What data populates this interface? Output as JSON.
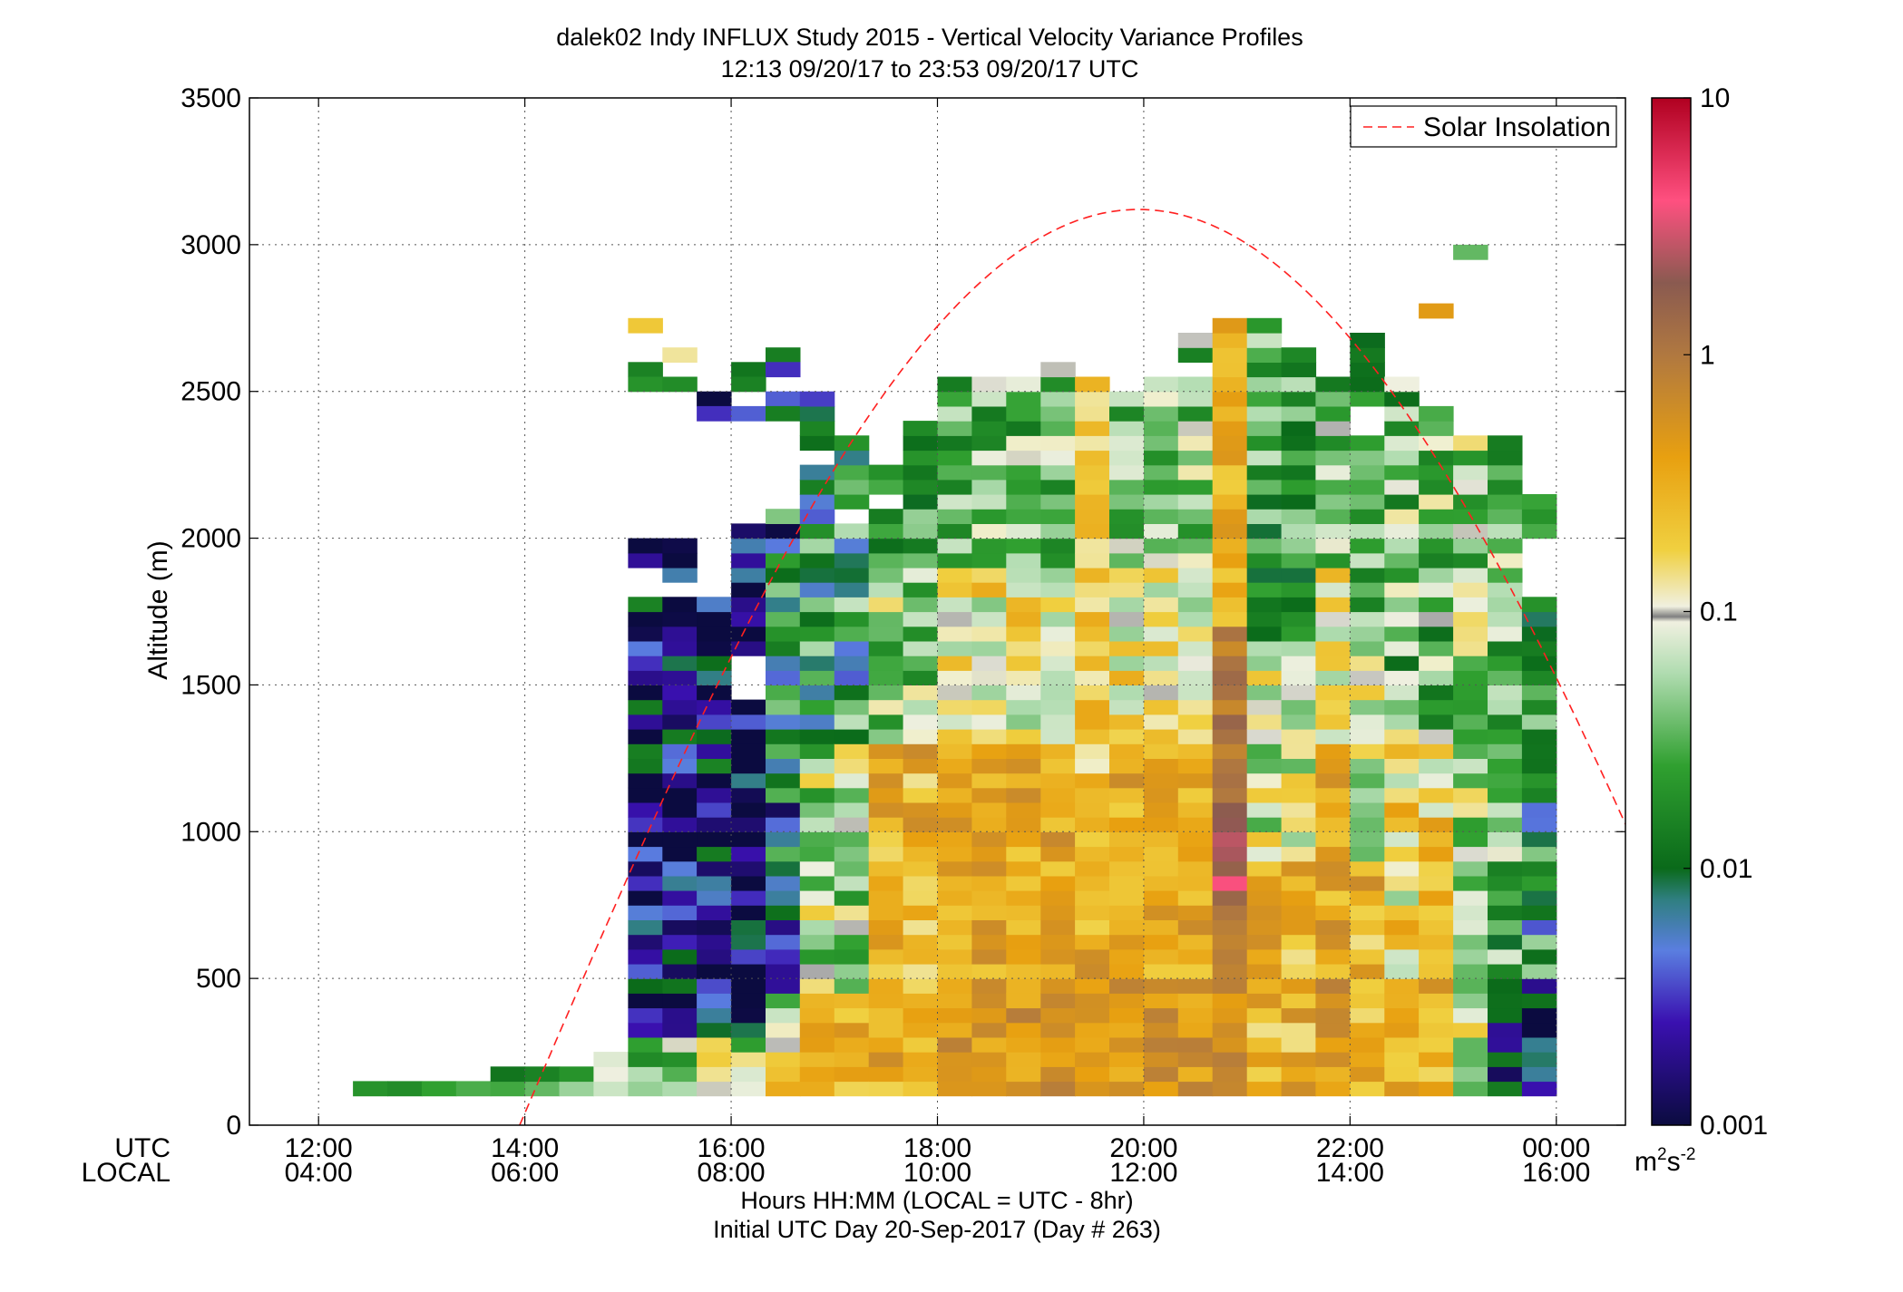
{
  "chart_data": {
    "type": "heatmap",
    "title_line1": "dalek02 Indy INFLUX Study 2015 - Vertical Velocity Variance Profiles",
    "title_line2": "12:13 09/20/17 to 23:53 09/20/17  UTC",
    "xlabel_line1": "Hours HH:MM  (LOCAL = UTC - 8hr)",
    "xlabel_line2": "Initial UTC Day 20-Sep-2017 (Day # 263)",
    "ylabel": "Altitude (m)",
    "row_label_utc": "UTC",
    "row_label_local": "LOCAL",
    "x_ticks_utc": [
      "12:00",
      "14:00",
      "16:00",
      "18:00",
      "20:00",
      "22:00",
      "00:00"
    ],
    "x_ticks_local": [
      "04:00",
      "06:00",
      "08:00",
      "10:00",
      "12:00",
      "14:00",
      "16:00"
    ],
    "x_tick_hours": [
      12,
      14,
      16,
      18,
      20,
      22,
      24
    ],
    "xlim_hours": [
      11.33,
      24.67
    ],
    "y_ticks": [
      "0",
      "500",
      "1000",
      "1500",
      "2000",
      "2500",
      "3000",
      "3500"
    ],
    "ylim": [
      0,
      3500
    ],
    "grid": true,
    "legend": {
      "label": "Solar Insolation",
      "position": "top-right",
      "color": "#ff2020"
    },
    "colorbar": {
      "scale": "log",
      "range": [
        0.001,
        10
      ],
      "tick_labels": [
        "0.001",
        "0.01",
        "0.1",
        "1",
        "10"
      ],
      "unit": "m²s⁻²",
      "unit_base": "m",
      "unit_sup1": "2",
      "unit_mid": "s",
      "unit_sup2": "-2"
    },
    "cell_width_hours": 0.3333,
    "cell_height_m": 50,
    "solar_insolation_curve": {
      "start_hour": 13.95,
      "peak_hour": 19.95,
      "end_hour": 25.95,
      "peak_altitude": 3120
    },
    "columns": [
      {
        "hour": 12.5,
        "cells": [
          {
            "alt": 125,
            "v": 0.02
          }
        ]
      },
      {
        "hour": 12.833,
        "cells": [
          {
            "alt": 125,
            "v": 0.018
          }
        ]
      },
      {
        "hour": 13.167,
        "cells": [
          {
            "alt": 125,
            "v": 0.025
          }
        ]
      },
      {
        "hour": 13.5,
        "cells": [
          {
            "alt": 125,
            "v": 0.03
          }
        ]
      },
      {
        "hour": 13.833,
        "cells": [
          {
            "alt": 125,
            "v": 0.028
          },
          {
            "alt": 175,
            "v": 0.012
          }
        ]
      },
      {
        "hour": 14.167,
        "cells": [
          {
            "alt": 125,
            "v": 0.035
          },
          {
            "alt": 175,
            "v": 0.015
          }
        ]
      },
      {
        "hour": 14.5,
        "cells": [
          {
            "alt": 125,
            "v": 0.05
          },
          {
            "alt": 175,
            "v": 0.02
          }
        ]
      },
      {
        "hour": 14.833,
        "cells": [
          {
            "alt": 125,
            "v": 0.07
          },
          {
            "alt": 175,
            "v": 0.09
          },
          {
            "alt": 225,
            "v": 0.08
          }
        ]
      },
      {
        "hour": 15.167,
        "columnType": "morning",
        "top": 1975,
        "holes": [
          2625,
          2475,
          2425,
          1875,
          1825
        ],
        "cells": [
          {
            "alt": 2725,
            "v": 0.2
          },
          {
            "alt": 2575,
            "v": 0.015
          },
          {
            "alt": 2525,
            "v": 0.02
          }
        ]
      },
      {
        "hour": 15.5,
        "columnType": "morning",
        "top": 1975,
        "holes": [
          2475,
          2425,
          2325,
          1825
        ],
        "cells": [
          {
            "alt": 2625,
            "v": 0.13
          },
          {
            "alt": 2525,
            "v": 0.018
          }
        ]
      },
      {
        "hour": 15.833,
        "columnType": "morning",
        "top": 1775,
        "holes": [
          2175,
          2125,
          1975,
          1925
        ],
        "cells": [
          {
            "alt": 2475,
            "v": 0.001
          },
          {
            "alt": 2425,
            "v": 0.003
          }
        ]
      },
      {
        "hour": 16.167,
        "columnType": "morning",
        "top": 2025,
        "holes": [
          2275,
          2225,
          1575,
          1525,
          1475
        ],
        "cells": [
          {
            "alt": 2575,
            "v": 0.012
          },
          {
            "alt": 2525,
            "v": 0.015
          },
          {
            "alt": 2425,
            "v": 0.004
          }
        ]
      },
      {
        "hour": 16.5,
        "columnType": "morning_late",
        "top": 2075,
        "cells": [
          {
            "alt": 2625,
            "v": 0.014
          },
          {
            "alt": 2575,
            "v": 0.003
          },
          {
            "alt": 2475,
            "v": 0.004
          },
          {
            "alt": 2425,
            "v": 0.014
          }
        ]
      },
      {
        "hour": 16.833,
        "columnType": "transition",
        "top": 2475,
        "holes": [
          2275
        ]
      },
      {
        "hour": 17.167,
        "columnType": "transition",
        "top": 2325,
        "holes": [
          2075
        ]
      },
      {
        "hour": 17.5,
        "columnType": "day_low",
        "top": 2225,
        "holes": [
          2125
        ]
      },
      {
        "hour": 17.833,
        "columnType": "day_low",
        "top": 2375
      },
      {
        "hour": 18.167,
        "columnType": "day",
        "top": 2525
      },
      {
        "hour": 18.5,
        "columnType": "day",
        "top": 2525
      },
      {
        "hour": 18.833,
        "columnType": "day",
        "top": 2525
      },
      {
        "hour": 19.167,
        "columnType": "day",
        "top": 2575
      },
      {
        "hour": 19.5,
        "columnType": "day_yellow",
        "top": 2525
      },
      {
        "hour": 19.833,
        "columnType": "day",
        "top": 2475
      },
      {
        "hour": 20.167,
        "columnType": "day",
        "top": 2525
      },
      {
        "hour": 20.5,
        "columnType": "day",
        "top": 2675,
        "holes": [
          2575
        ]
      },
      {
        "hour": 20.833,
        "columnType": "peak",
        "top": 2725
      },
      {
        "hour": 21.167,
        "columnType": "day_green",
        "top": 2725
      },
      {
        "hour": 21.5,
        "columnType": "day_green",
        "top": 2625
      },
      {
        "hour": 21.833,
        "columnType": "day",
        "top": 2525
      },
      {
        "hour": 22.167,
        "columnType": "day_green",
        "top": 2675,
        "holes": [
          2425,
          2375
        ]
      },
      {
        "hour": 22.5,
        "columnType": "late",
        "top": 2525
      },
      {
        "hour": 22.833,
        "columnType": "late",
        "top": 2425,
        "cells": [
          {
            "alt": 2775,
            "v": 0.45
          }
        ]
      },
      {
        "hour": 23.167,
        "columnType": "late2",
        "top": 2325,
        "cells": [
          {
            "alt": 2975,
            "v": 0.035
          }
        ]
      },
      {
        "hour": 23.5,
        "columnType": "evening",
        "top": 2325
      },
      {
        "hour": 23.833,
        "columnType": "evening2",
        "top": 2125,
        "holes": [
          1975,
          1925,
          1875,
          1825
        ]
      }
    ]
  }
}
